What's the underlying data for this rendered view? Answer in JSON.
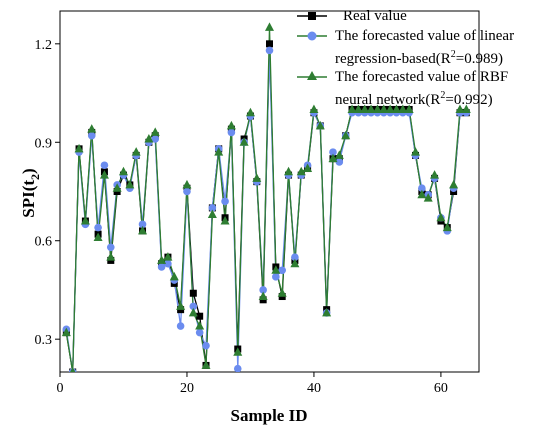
{
  "chart_data": {
    "type": "line",
    "xlabel": "Sample ID",
    "ylabel_main": "SPI(t",
    "ylabel_sub": "2",
    "ylabel_close": ")",
    "xlim": [
      0,
      66
    ],
    "ylim": [
      0.2,
      1.3
    ],
    "xticks": [
      0,
      20,
      40,
      60
    ],
    "yticks": [
      0.3,
      0.6,
      0.9,
      1.2
    ],
    "xtick_labels": [
      "0",
      "20",
      "40",
      "60"
    ],
    "ytick_labels": [
      "0.3",
      "0.6",
      "0.9",
      "1.2"
    ],
    "legend_position": "top-right",
    "x": [
      1,
      2,
      3,
      4,
      5,
      6,
      7,
      8,
      9,
      10,
      11,
      12,
      13,
      14,
      15,
      16,
      17,
      18,
      19,
      20,
      21,
      22,
      23,
      24,
      25,
      26,
      27,
      28,
      29,
      30,
      31,
      32,
      33,
      34,
      35,
      36,
      37,
      38,
      39,
      40,
      41,
      42,
      43,
      44,
      45,
      46,
      47,
      48,
      49,
      50,
      51,
      52,
      53,
      54,
      55,
      56,
      57,
      58,
      59,
      60,
      61,
      62,
      63,
      64
    ],
    "series": [
      {
        "name": "Real value",
        "legend_lines": [
          "Real value"
        ],
        "color": "#000000",
        "marker": "square",
        "values": [
          0.32,
          0.2,
          0.88,
          0.66,
          0.93,
          0.62,
          0.81,
          0.54,
          0.75,
          0.8,
          0.77,
          0.86,
          0.63,
          0.9,
          0.92,
          0.53,
          0.55,
          0.47,
          0.39,
          0.76,
          0.44,
          0.37,
          0.22,
          0.7,
          0.88,
          0.67,
          0.94,
          0.27,
          0.91,
          0.98,
          0.78,
          0.42,
          1.2,
          0.52,
          0.43,
          0.8,
          0.54,
          0.8,
          0.82,
          0.99,
          0.95,
          0.39,
          0.85,
          0.85,
          0.92,
          1.0,
          1.0,
          1.0,
          1.0,
          1.0,
          1.0,
          1.0,
          1.0,
          1.0,
          1.0,
          0.86,
          0.75,
          0.74,
          0.79,
          0.66,
          0.64,
          0.75,
          0.99,
          0.99
        ]
      },
      {
        "name": "The forecasted value of linear regression-based(R²=0.989)",
        "legend_lines": [
          "The forecasted value of linear",
          "regression-based(R",
          "=0.989)"
        ],
        "legend_sup": "2",
        "color": "#6b8cef",
        "marker": "circle",
        "values": [
          0.33,
          0.2,
          0.87,
          0.65,
          0.92,
          0.64,
          0.83,
          0.58,
          0.77,
          0.8,
          0.76,
          0.86,
          0.65,
          0.9,
          0.91,
          0.52,
          0.53,
          0.48,
          0.34,
          0.75,
          0.4,
          0.32,
          0.28,
          0.7,
          0.88,
          0.72,
          0.93,
          0.21,
          0.9,
          0.98,
          0.78,
          0.45,
          1.18,
          0.49,
          0.51,
          0.8,
          0.55,
          0.8,
          0.83,
          0.99,
          0.95,
          0.38,
          0.87,
          0.84,
          0.92,
          0.99,
          0.99,
          0.99,
          0.99,
          0.99,
          0.99,
          0.99,
          0.99,
          0.99,
          0.99,
          0.86,
          0.76,
          0.74,
          0.79,
          0.67,
          0.63,
          0.76,
          0.99,
          0.99
        ]
      },
      {
        "name": "The forecasted value of RBF neural network(R²=0.992)",
        "legend_lines": [
          "The forecasted value of RBF",
          "neural network(R",
          "=0.992)"
        ],
        "legend_sup": "2",
        "color": "#2e7d32",
        "marker": "triangle",
        "values": [
          0.32,
          0.2,
          0.88,
          0.66,
          0.94,
          0.61,
          0.8,
          0.55,
          0.76,
          0.81,
          0.77,
          0.87,
          0.63,
          0.91,
          0.93,
          0.54,
          0.55,
          0.49,
          0.4,
          0.77,
          0.38,
          0.34,
          0.22,
          0.68,
          0.87,
          0.66,
          0.95,
          0.26,
          0.9,
          0.99,
          0.79,
          0.43,
          1.25,
          0.51,
          0.44,
          0.81,
          0.53,
          0.81,
          0.82,
          1.0,
          0.95,
          0.38,
          0.85,
          0.86,
          0.92,
          1.0,
          1.0,
          1.0,
          1.0,
          1.0,
          1.0,
          1.0,
          1.0,
          1.0,
          1.0,
          0.87,
          0.74,
          0.73,
          0.8,
          0.67,
          0.64,
          0.77,
          1.0,
          1.0
        ]
      }
    ]
  }
}
